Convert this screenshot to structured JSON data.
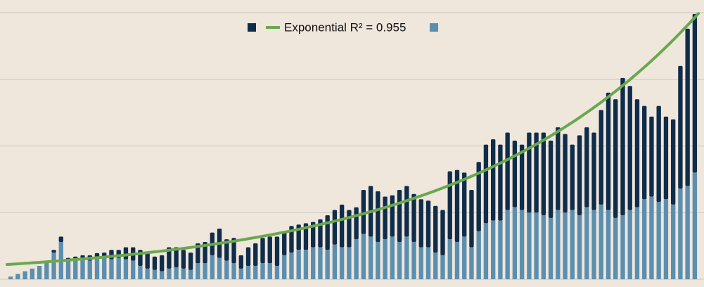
{
  "chart_data": {
    "type": "stacked-bar",
    "series": [
      {
        "color": "#5b8fb0",
        "values": [
          1,
          2,
          3,
          4,
          5,
          7,
          10,
          14,
          7,
          7.5,
          8,
          7,
          8,
          8,
          7.5,
          8,
          7.5,
          7,
          5,
          4,
          3.5,
          3,
          4,
          4.5,
          4,
          3.5,
          6,
          6,
          9,
          8,
          7,
          6,
          4,
          5,
          5,
          6,
          6,
          5,
          9,
          10,
          11,
          11,
          12,
          12,
          11,
          13,
          12,
          12,
          15,
          17,
          16,
          14,
          15,
          16,
          14,
          16,
          14,
          12,
          12,
          10,
          9,
          15,
          14,
          16,
          12,
          18,
          21,
          22,
          22,
          26,
          27,
          26,
          25,
          25,
          24,
          23,
          26,
          25,
          26,
          24,
          27,
          26,
          28,
          26,
          23,
          24,
          26,
          27,
          30,
          31,
          29,
          30,
          28,
          34,
          35,
          40
        ]
      },
      {
        "color": "#0f2d4a",
        "values": [
          0,
          0,
          0,
          0,
          0,
          0,
          1,
          2,
          1,
          1,
          1,
          2,
          1.8,
          2,
          3.5,
          3,
          4.5,
          5,
          6,
          6,
          5,
          6,
          8,
          7.5,
          7,
          6.5,
          7.5,
          8,
          8.5,
          11,
          8,
          9.5,
          5,
          7,
          8.5,
          9.5,
          10,
          11,
          9,
          10,
          9.5,
          10,
          9.5,
          10.5,
          13,
          13,
          16,
          14,
          12,
          16.5,
          19,
          19,
          16,
          15.5,
          19.5,
          19,
          18,
          18,
          17.5,
          17.5,
          17,
          25.5,
          27,
          24,
          21.5,
          26,
          29.5,
          30.5,
          28.5,
          29,
          25,
          24.5,
          30,
          30,
          31,
          29,
          31,
          29.5,
          24.5,
          30,
          30,
          29,
          35.5,
          44,
          44.5,
          51.5,
          46.5,
          40.5,
          35,
          30,
          36,
          31,
          32,
          46,
          59,
          59.5
        ]
      }
    ],
    "trendline": {
      "type": "exponential",
      "label": "Exponential R² = 0.955",
      "color": "#6aa84f"
    },
    "ylim": [
      0,
      100
    ],
    "yticks": [
      0,
      25,
      50,
      75,
      100
    ],
    "grid": true
  }
}
